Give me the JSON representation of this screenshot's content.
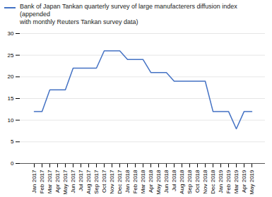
{
  "chart_data": {
    "type": "line",
    "title": "Bank of Japan Tankan quarterly survey of large manufacterers diffusion index (appended\nwith monthly Reuters Tankan survey data)",
    "categories": [
      "Jan 2017",
      "Feb 2017",
      "Mar 2017",
      "Apr 2017",
      "May 2017",
      "Jun 2017",
      "Jul 2017",
      "Aug 2017",
      "Sep 2017",
      "Oct 2017",
      "Nov 2017",
      "Dec 2017",
      "Jan 2018",
      "Feb 2018",
      "Mar 2018",
      "Apr 2018",
      "May 2018",
      "Jun 2018",
      "Jul 2018",
      "Aug 2018",
      "Sep 2018",
      "Oct 2018",
      "Nov 2018",
      "Dec 2018",
      "Jan 2019",
      "Feb 2019",
      "Mar 2019",
      "Apr 2019",
      "May 2019"
    ],
    "values": [
      12,
      12,
      17,
      17,
      17,
      22,
      22,
      22,
      22,
      26,
      26,
      26,
      24,
      24,
      24,
      21,
      21,
      21,
      19,
      19,
      19,
      19,
      19,
      12,
      12,
      12,
      8,
      12,
      12
    ],
    "color": "#4472C4",
    "ylim": [
      0,
      30
    ],
    "yticks": [
      0,
      5,
      10,
      15,
      20,
      25,
      30
    ],
    "grid": true
  }
}
